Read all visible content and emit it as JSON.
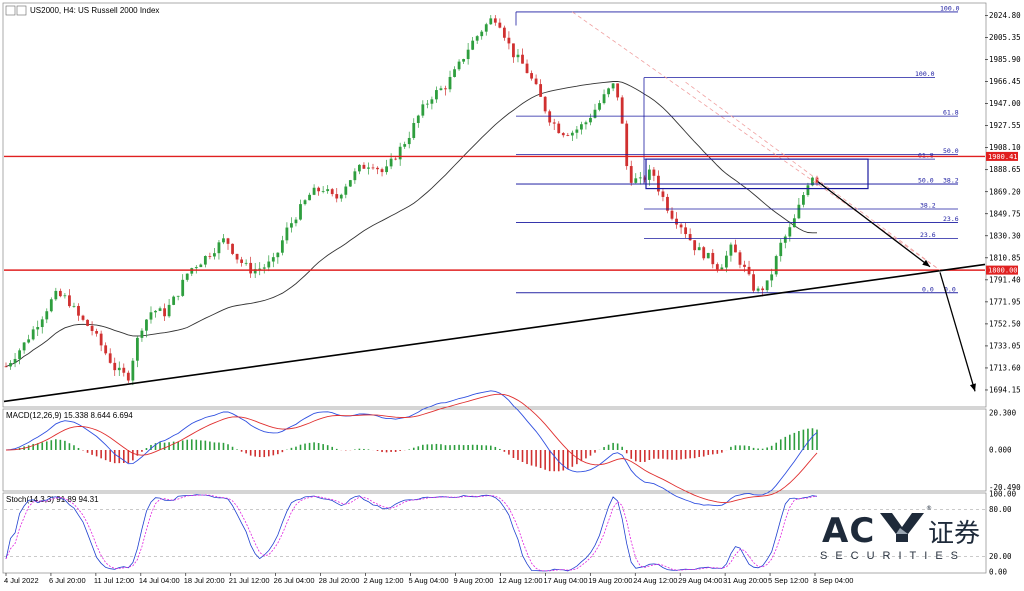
{
  "header": {
    "symbol_text": "US2000, H4:  US Russell 2000 Index",
    "macd_label": "MACD(12,26,9) 15.338 8.644 6.694",
    "stoch_label": "Stoch(14,3,3) 91.89 94.31"
  },
  "chart_data": [
    {
      "type": "candlestick",
      "title": "US2000, H4: US Russell 2000 Index",
      "y_ticks": [
        "2024.80",
        "2005.35",
        "1985.90",
        "1966.45",
        "1947.00",
        "1927.55",
        "1908.10",
        "1888.65",
        "1869.20",
        "1849.75",
        "1830.30",
        "1810.85",
        "1791.40",
        "1771.95",
        "1752.50",
        "1733.05",
        "1713.60",
        "1694.15"
      ],
      "ylim": [
        1680,
        2035
      ],
      "x_ticks": [
        "4 Jul 2022",
        "6 Jul 20:00",
        "11 Jul 12:00",
        "14 Jul 04:00",
        "18 Jul 20:00",
        "21 Jul 12:00",
        "26 Jul 04:00",
        "28 Jul 20:00",
        "2 Aug 12:00",
        "5 Aug 04:00",
        "9 Aug 20:00",
        "12 Aug 12:00",
        "17 Aug 04:00",
        "19 Aug 20:00",
        "24 Aug 12:00",
        "29 Aug 04:00",
        "31 Aug 20:00",
        "5 Sep 12:00",
        "8 Sep 04:00"
      ],
      "series_path": [
        [
          0,
          1715
        ],
        [
          3,
          1735
        ],
        [
          6,
          1760
        ],
        [
          8,
          1778
        ],
        [
          10,
          1775
        ],
        [
          12,
          1758
        ],
        [
          14,
          1748
        ],
        [
          16,
          1730
        ],
        [
          18,
          1712
        ],
        [
          20,
          1705
        ],
        [
          22,
          1748
        ],
        [
          24,
          1765
        ],
        [
          26,
          1762
        ],
        [
          28,
          1778
        ],
        [
          30,
          1800
        ],
        [
          32,
          1808
        ],
        [
          34,
          1818
        ],
        [
          36,
          1828
        ],
        [
          38,
          1810
        ],
        [
          40,
          1800
        ],
        [
          42,
          1802
        ],
        [
          44,
          1808
        ],
        [
          46,
          1835
        ],
        [
          48,
          1852
        ],
        [
          50,
          1868
        ],
        [
          52,
          1872
        ],
        [
          54,
          1862
        ],
        [
          56,
          1878
        ],
        [
          58,
          1890
        ],
        [
          60,
          1895
        ],
        [
          62,
          1885
        ],
        [
          64,
          1902
        ],
        [
          66,
          1918
        ],
        [
          68,
          1940
        ],
        [
          70,
          1955
        ],
        [
          72,
          1962
        ],
        [
          74,
          1978
        ],
        [
          76,
          1998
        ],
        [
          78,
          2012
        ],
        [
          80,
          2024
        ],
        [
          81,
          2018
        ],
        [
          83,
          1992
        ],
        [
          85,
          1980
        ],
        [
          87,
          1960
        ],
        [
          89,
          1935
        ],
        [
          91,
          1922
        ],
        [
          93,
          1922
        ],
        [
          95,
          1930
        ],
        [
          97,
          1945
        ],
        [
          99,
          1960
        ],
        [
          100,
          1965
        ],
        [
          101,
          1930
        ],
        [
          102,
          1882
        ],
        [
          104,
          1878
        ],
        [
          106,
          1888
        ],
        [
          107,
          1872
        ],
        [
          109,
          1850
        ],
        [
          111,
          1838
        ],
        [
          113,
          1820
        ],
        [
          115,
          1812
        ],
        [
          117,
          1802
        ],
        [
          119,
          1820
        ],
        [
          121,
          1802
        ],
        [
          123,
          1780
        ],
        [
          125,
          1788
        ],
        [
          127,
          1822
        ],
        [
          129,
          1840
        ],
        [
          131,
          1870
        ],
        [
          132,
          1885
        ],
        [
          133,
          1880
        ]
      ],
      "hlines": [
        {
          "value": 1900.41,
          "label": "1900.41",
          "color": "#e02020"
        },
        {
          "value": 1800.0,
          "label": "1800.00",
          "color": "#e02020"
        }
      ],
      "fib_top": [
        {
          "label": "100.0"
        },
        {
          "label": "100.0"
        },
        {
          "label": "61.8"
        },
        {
          "label": "50.0"
        },
        {
          "label": "61.8"
        },
        {
          "label": "50.0"
        },
        {
          "label": "38.2"
        },
        {
          "label": "38.2"
        },
        {
          "label": "23.6"
        },
        {
          "label": "23.6"
        },
        {
          "label": "0.0"
        },
        {
          "label": "0.0"
        }
      ]
    },
    {
      "type": "bar",
      "title": "MACD(12,26,9) 15.338 8.644 6.694",
      "y_ticks": [
        "20.300",
        "0.000",
        "-20.490"
      ],
      "ylim": [
        -22,
        22
      ]
    },
    {
      "type": "line",
      "title": "Stoch(14,3,3) 91.89 94.31",
      "y_ticks": [
        "100.00",
        "80.00",
        "20.00",
        "0.00"
      ],
      "ylim": [
        0,
        100
      ]
    }
  ],
  "logo": {
    "main": "AC",
    "cn": "证券",
    "sub": "SECURITIES"
  },
  "colors": {
    "bull": "#2e9e3e",
    "bear": "#d03030",
    "ma": "#333333",
    "fib": "#1a1aa0",
    "macd_main": "#3050e0",
    "macd_signal": "#e03030",
    "stoch_main": "#2040d0",
    "stoch_signal": "#e020e0"
  }
}
